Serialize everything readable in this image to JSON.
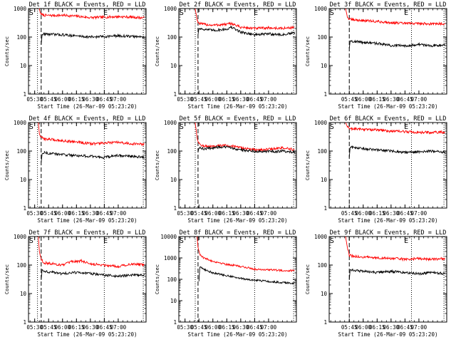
{
  "figure": {
    "background": "#ffffff",
    "axis_color": "#000000"
  },
  "chart_data": [
    {
      "type": "line",
      "title": "Det 1f BLACK = Events, RED = LLD",
      "xlabel": "Start Time (26-Mar-09 05:23:20)",
      "ylabel": "Counts/sec",
      "ylog": true,
      "ylim": [
        1,
        1000
      ],
      "yticks": [
        1,
        10,
        100,
        1000
      ],
      "ytick_labels": [
        "1",
        "10",
        "100",
        "1000"
      ],
      "xlim": [
        "05:23:20",
        "07:30"
      ],
      "xticks": [
        "05:30",
        "05:45",
        "06:00",
        "06:15",
        "06:30",
        "06:45",
        "07:00"
      ],
      "xtick_labels": [
        "05:30",
        "05:45",
        "06:00",
        "06:15",
        "06:30",
        "06:45",
        "07:00"
      ],
      "markers": {
        "S": "05:24",
        "E": "06:44"
      },
      "vlines": [
        {
          "time": "05:33",
          "style": "dotted"
        },
        {
          "time": "05:37",
          "style": "dashed"
        },
        {
          "time": "06:45",
          "style": "dotted"
        },
        {
          "time": "07:27",
          "style": "dotted"
        }
      ],
      "series": [
        {
          "color": "#ff0000",
          "x": [
            "05:35",
            "05:36",
            "05:38",
            "05:40",
            "05:45",
            "06:00",
            "06:15",
            "06:30",
            "06:45",
            "07:00",
            "07:15",
            "07:28"
          ],
          "y": [
            1000,
            700,
            600,
            580,
            570,
            580,
            540,
            480,
            500,
            520,
            500,
            470
          ]
        },
        {
          "color": "#000000",
          "x": [
            "05:37",
            "05:38",
            "05:40",
            "05:45",
            "06:00",
            "06:15",
            "06:30",
            "06:45",
            "07:00",
            "07:15",
            "07:28"
          ],
          "y": [
            55,
            120,
            130,
            125,
            120,
            110,
            100,
            105,
            110,
            105,
            100
          ]
        }
      ]
    },
    {
      "type": "line",
      "title": "Det 2f BLACK = Events, RED = LLD",
      "xlabel": "Start Time (26-Mar-09 05:23:20)",
      "ylabel": "Counts/sec",
      "ylog": true,
      "ylim": [
        1,
        1000
      ],
      "yticks": [
        1,
        10,
        100,
        1000
      ],
      "ytick_labels": [
        "1",
        "10",
        "100",
        "1000"
      ],
      "xlim": [
        "05:23:20",
        "07:30"
      ],
      "xticks": [
        "05:30",
        "05:45",
        "06:00",
        "06:15",
        "06:30",
        "06:45",
        "07:00"
      ],
      "xtick_labels": [
        "05:30",
        "05:45",
        "06:00",
        "06:15",
        "06:30",
        "06:45",
        "07:00"
      ],
      "markers": {
        "S": "05:24",
        "E": "06:44"
      },
      "vlines": [
        {
          "time": "05:41",
          "style": "dotted"
        },
        {
          "time": "05:44",
          "style": "dashed"
        },
        {
          "time": "06:45",
          "style": "dotted"
        },
        {
          "time": "07:27",
          "style": "dotted"
        }
      ],
      "series": [
        {
          "color": "#ff0000",
          "x": [
            "05:41",
            "05:43",
            "05:45",
            "05:50",
            "06:00",
            "06:15",
            "06:20",
            "06:30",
            "06:45",
            "07:00",
            "07:15",
            "07:28"
          ],
          "y": [
            1000,
            400,
            300,
            280,
            260,
            280,
            300,
            220,
            200,
            210,
            200,
            220
          ]
        },
        {
          "color": "#000000",
          "x": [
            "05:44",
            "05:45",
            "05:50",
            "06:00",
            "06:15",
            "06:20",
            "06:30",
            "06:45",
            "07:00",
            "07:15",
            "07:28"
          ],
          "y": [
            120,
            200,
            190,
            170,
            190,
            220,
            150,
            120,
            130,
            120,
            140
          ]
        }
      ]
    },
    {
      "type": "line",
      "title": "Det 3f BLACK = Events, RED = LLD",
      "xlabel": "Start Time (26-Mar-09 05:23:20)",
      "ylabel": "Counts/sec",
      "ylog": true,
      "ylim": [
        1,
        1000
      ],
      "yticks": [
        1,
        10,
        100,
        1000
      ],
      "ytick_labels": [
        "1",
        "10",
        "100",
        "1000"
      ],
      "xlim": [
        "05:23:20",
        "07:30"
      ],
      "xticks": [
        "05:45",
        "06:00",
        "06:15",
        "06:30",
        "06:45",
        "07:00"
      ],
      "xtick_labels": [
        "05:45",
        "06:00",
        "06:15",
        "06:30",
        "06:45",
        "07:00"
      ],
      "markers": {
        "S": "05:24",
        "E": "06:44"
      },
      "vlines": [
        {
          "time": "05:45",
          "style": "dashed"
        },
        {
          "time": "06:52",
          "style": "dotted"
        },
        {
          "time": "07:27",
          "style": "dotted"
        }
      ],
      "series": [
        {
          "color": "#ff0000",
          "x": [
            "05:41",
            "05:43",
            "05:45",
            "05:50",
            "06:00",
            "06:15",
            "06:30",
            "06:45",
            "07:00",
            "07:15",
            "07:28"
          ],
          "y": [
            1000,
            500,
            420,
            400,
            380,
            350,
            320,
            300,
            300,
            290,
            300
          ]
        },
        {
          "color": "#000000",
          "x": [
            "05:45",
            "05:46",
            "05:50",
            "06:00",
            "06:15",
            "06:30",
            "06:45",
            "07:00",
            "07:15",
            "07:28"
          ],
          "y": [
            40,
            75,
            70,
            65,
            60,
            50,
            50,
            55,
            50,
            55
          ]
        }
      ]
    },
    {
      "type": "line",
      "title": "Det 4f BLACK = Events, RED = LLD",
      "xlabel": "Start Time (26-Mar-09 05:23:20)",
      "ylabel": "Counts/sec",
      "ylog": true,
      "ylim": [
        1,
        1000
      ],
      "yticks": [
        1,
        10,
        100,
        1000
      ],
      "ytick_labels": [
        "1",
        "10",
        "100",
        "1000"
      ],
      "xlim": [
        "05:23:20",
        "07:30"
      ],
      "xticks": [
        "05:30",
        "05:45",
        "06:00",
        "06:15",
        "06:30",
        "06:45",
        "07:00"
      ],
      "xtick_labels": [
        "05:30",
        "05:45",
        "06:00",
        "06:15",
        "06:30",
        "06:45",
        "07:00"
      ],
      "markers": {
        "S": "05:24",
        "E": "06:44"
      },
      "vlines": [
        {
          "time": "05:33",
          "style": "dotted"
        },
        {
          "time": "05:37",
          "style": "dashed"
        },
        {
          "time": "06:45",
          "style": "dotted"
        },
        {
          "time": "07:27",
          "style": "dotted"
        }
      ],
      "series": [
        {
          "color": "#ff0000",
          "x": [
            "05:34",
            "05:35",
            "05:37",
            "05:40",
            "05:50",
            "06:00",
            "06:15",
            "06:30",
            "06:45",
            "07:00",
            "07:15",
            "07:28"
          ],
          "y": [
            1000,
            400,
            300,
            270,
            250,
            230,
            210,
            180,
            190,
            200,
            180,
            170
          ]
        },
        {
          "color": "#000000",
          "x": [
            "05:37",
            "05:38",
            "05:40",
            "05:50",
            "06:00",
            "06:15",
            "06:30",
            "06:45",
            "07:00",
            "07:15",
            "07:28"
          ],
          "y": [
            40,
            80,
            90,
            80,
            75,
            70,
            65,
            60,
            70,
            65,
            60
          ]
        }
      ]
    },
    {
      "type": "line",
      "title": "Det 5f BLACK = Events, RED = LLD",
      "xlabel": "Start Time (26-Mar-09 05:23:20)",
      "ylabel": "Counts/sec",
      "ylog": true,
      "ylim": [
        1,
        1000
      ],
      "yticks": [
        1,
        10,
        100,
        1000
      ],
      "ytick_labels": [
        "1",
        "10",
        "100",
        "1000"
      ],
      "xlim": [
        "05:23:20",
        "07:30"
      ],
      "xticks": [
        "05:30",
        "05:45",
        "06:00",
        "06:15",
        "06:30",
        "06:45",
        "07:00"
      ],
      "xtick_labels": [
        "05:30",
        "05:45",
        "06:00",
        "06:15",
        "06:30",
        "06:45",
        "07:00"
      ],
      "markers": {
        "S": "05:24",
        "E": "06:44"
      },
      "vlines": [
        {
          "time": "05:41",
          "style": "dotted"
        },
        {
          "time": "05:44",
          "style": "dashed"
        },
        {
          "time": "06:45",
          "style": "dotted"
        },
        {
          "time": "07:27",
          "style": "dotted"
        }
      ],
      "series": [
        {
          "color": "#ff0000",
          "x": [
            "05:41",
            "05:43",
            "05:45",
            "05:50",
            "06:00",
            "06:10",
            "06:20",
            "06:30",
            "06:45",
            "07:00",
            "07:15",
            "07:28"
          ],
          "y": [
            1000,
            300,
            180,
            150,
            140,
            160,
            150,
            130,
            110,
            115,
            130,
            110
          ]
        },
        {
          "color": "#000000",
          "x": [
            "05:44",
            "05:45",
            "05:50",
            "06:00",
            "06:10",
            "06:20",
            "06:30",
            "06:45",
            "07:00",
            "07:15",
            "07:28"
          ],
          "y": [
            90,
            130,
            120,
            130,
            140,
            130,
            110,
            100,
            95,
            100,
            90
          ]
        }
      ]
    },
    {
      "type": "line",
      "title": "Det 6f BLACK = Events, RED = LLD",
      "xlabel": "Start Time (26-Mar-09 05:23:20)",
      "ylabel": "Counts/sec",
      "ylog": true,
      "ylim": [
        1,
        1000
      ],
      "yticks": [
        1,
        10,
        100,
        1000
      ],
      "ytick_labels": [
        "1",
        "10",
        "100",
        "1000"
      ],
      "xlim": [
        "05:23:20",
        "07:30"
      ],
      "xticks": [
        "05:45",
        "06:00",
        "06:15",
        "06:30",
        "06:45",
        "07:00"
      ],
      "xtick_labels": [
        "05:45",
        "06:00",
        "06:15",
        "06:30",
        "06:45",
        "07:00"
      ],
      "markers": {
        "S": "05:24",
        "E": "06:44"
      },
      "vlines": [
        {
          "time": "05:45",
          "style": "dashed"
        },
        {
          "time": "06:52",
          "style": "dotted"
        },
        {
          "time": "07:27",
          "style": "dotted"
        }
      ],
      "series": [
        {
          "color": "#ff0000",
          "x": [
            "05:41",
            "05:43",
            "05:45",
            "05:50",
            "06:00",
            "06:15",
            "06:30",
            "06:45",
            "07:00",
            "07:15",
            "07:28"
          ],
          "y": [
            1000,
            700,
            620,
            600,
            580,
            550,
            500,
            480,
            450,
            450,
            460
          ]
        },
        {
          "color": "#000000",
          "x": [
            "05:45",
            "05:46",
            "05:50",
            "06:00",
            "06:15",
            "06:30",
            "06:45",
            "07:00",
            "07:15",
            "07:28"
          ],
          "y": [
            60,
            140,
            130,
            120,
            110,
            100,
            90,
            95,
            100,
            90
          ]
        }
      ]
    },
    {
      "type": "line",
      "title": "Det 7f BLACK = Events, RED = LLD",
      "xlabel": "Start Time (26-Mar-09 05:23:20)",
      "ylabel": "Counts/sec",
      "ylog": true,
      "ylim": [
        1,
        1000
      ],
      "yticks": [
        1,
        10,
        100,
        1000
      ],
      "ytick_labels": [
        "1",
        "10",
        "100",
        "1000"
      ],
      "xlim": [
        "05:23:20",
        "07:30"
      ],
      "xticks": [
        "05:30",
        "05:45",
        "06:00",
        "06:15",
        "06:30",
        "06:45",
        "07:00"
      ],
      "xtick_labels": [
        "05:30",
        "05:45",
        "06:00",
        "06:15",
        "06:30",
        "06:45",
        "07:00"
      ],
      "markers": {
        "S": "05:24",
        "E": "06:44"
      },
      "vlines": [
        {
          "time": "05:33",
          "style": "dotted"
        },
        {
          "time": "05:37",
          "style": "dashed"
        },
        {
          "time": "06:45",
          "style": "dotted"
        },
        {
          "time": "07:27",
          "style": "dotted"
        }
      ],
      "series": [
        {
          "color": "#ff0000",
          "x": [
            "05:34",
            "05:35",
            "05:37",
            "05:40",
            "05:50",
            "06:00",
            "06:10",
            "06:20",
            "06:30",
            "06:45",
            "07:00",
            "07:15",
            "07:28"
          ],
          "y": [
            1000,
            300,
            160,
            120,
            110,
            100,
            130,
            140,
            110,
            100,
            90,
            110,
            100
          ]
        },
        {
          "color": "#000000",
          "x": [
            "05:37",
            "05:38",
            "05:40",
            "05:50",
            "06:00",
            "06:15",
            "06:30",
            "06:45",
            "07:00",
            "07:15",
            "07:28"
          ],
          "y": [
            30,
            70,
            60,
            55,
            50,
            55,
            50,
            45,
            40,
            45,
            45
          ]
        }
      ]
    },
    {
      "type": "line",
      "title": "Det 8f BLACK = Events, RED = LLD",
      "xlabel": "Start Time (26-Mar-09 05:23:20)",
      "ylabel": "Counts/sec",
      "ylog": true,
      "ylim": [
        1,
        10000
      ],
      "yticks": [
        1,
        10,
        100,
        1000,
        10000
      ],
      "ytick_labels": [
        "1",
        "10",
        "100",
        "1000",
        "10000"
      ],
      "xlim": [
        "05:23:20",
        "07:30"
      ],
      "xticks": [
        "05:30",
        "05:45",
        "06:00",
        "06:15",
        "06:30",
        "06:45",
        "07:00"
      ],
      "xtick_labels": [
        "05:30",
        "05:45",
        "06:00",
        "06:15",
        "06:30",
        "06:45",
        "07:00"
      ],
      "markers": {
        "S": "05:24",
        "E": "06:44"
      },
      "vlines": [
        {
          "time": "05:41",
          "style": "dotted"
        },
        {
          "time": "05:44",
          "style": "dashed"
        },
        {
          "time": "06:45",
          "style": "dotted"
        },
        {
          "time": "07:27",
          "style": "dotted"
        }
      ],
      "series": [
        {
          "color": "#ff0000",
          "x": [
            "05:43",
            "05:44",
            "05:46",
            "05:50",
            "06:00",
            "06:15",
            "06:30",
            "06:45",
            "07:00",
            "07:15",
            "07:28"
          ],
          "y": [
            10000,
            3000,
            1500,
            1000,
            700,
            500,
            400,
            300,
            280,
            260,
            250
          ]
        },
        {
          "color": "#000000",
          "x": [
            "05:45",
            "05:46",
            "05:50",
            "06:00",
            "06:15",
            "06:30",
            "06:45",
            "07:00",
            "07:15",
            "07:28"
          ],
          "y": [
            80,
            400,
            300,
            200,
            150,
            110,
            90,
            80,
            70,
            65
          ]
        }
      ]
    },
    {
      "type": "line",
      "title": "Det 9f BLACK = Events, RED = LLD",
      "xlabel": "Start Time (26-Mar-09 05:23:20)",
      "ylabel": "Counts/sec",
      "ylog": true,
      "ylim": [
        1,
        1000
      ],
      "yticks": [
        1,
        10,
        100,
        1000
      ],
      "ytick_labels": [
        "1",
        "10",
        "100",
        "1000"
      ],
      "xlim": [
        "05:23:20",
        "07:30"
      ],
      "xticks": [
        "05:45",
        "06:00",
        "06:15",
        "06:30",
        "06:45",
        "07:00"
      ],
      "xtick_labels": [
        "05:45",
        "06:00",
        "06:15",
        "06:30",
        "06:45",
        "07:00"
      ],
      "markers": {
        "S": "05:24",
        "E": "06:44"
      },
      "vlines": [
        {
          "time": "05:45",
          "style": "dashed"
        },
        {
          "time": "06:52",
          "style": "dotted"
        },
        {
          "time": "07:27",
          "style": "dotted"
        }
      ],
      "series": [
        {
          "color": "#ff0000",
          "x": [
            "05:41",
            "05:43",
            "05:45",
            "05:50",
            "06:00",
            "06:15",
            "06:30",
            "06:45",
            "07:00",
            "07:15",
            "07:28"
          ],
          "y": [
            1000,
            400,
            220,
            200,
            190,
            180,
            170,
            160,
            170,
            160,
            170
          ]
        },
        {
          "color": "#000000",
          "x": [
            "05:45",
            "05:46",
            "05:50",
            "06:00",
            "06:15",
            "06:30",
            "06:45",
            "07:00",
            "07:15",
            "07:28"
          ],
          "y": [
            30,
            70,
            65,
            60,
            55,
            60,
            55,
            50,
            55,
            50
          ]
        }
      ]
    }
  ]
}
